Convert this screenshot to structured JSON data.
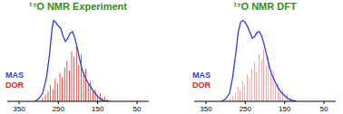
{
  "chart_data": [
    {
      "type": "line",
      "title": "¹⁷O NMR Experiment",
      "legend": "lower left",
      "tick_labels": "x",
      "xlim": [
        380,
        20
      ],
      "xticks": [
        350,
        250,
        150,
        50
      ],
      "ylim": [
        0,
        1.05
      ],
      "series": [
        {
          "name": "MAS",
          "type": "line",
          "color": "#2b3fd6",
          "x": [
            310,
            300,
            290,
            280,
            272,
            266,
            262,
            256,
            250,
            244,
            238,
            232,
            226,
            220,
            214,
            208,
            202,
            196,
            190,
            184,
            176,
            168,
            160,
            150,
            140,
            130,
            120
          ],
          "values": [
            0,
            0.03,
            0.1,
            0.3,
            0.6,
            0.9,
            1.0,
            0.97,
            0.93,
            0.9,
            0.8,
            0.74,
            0.78,
            0.84,
            0.86,
            0.78,
            0.66,
            0.52,
            0.4,
            0.32,
            0.24,
            0.18,
            0.12,
            0.06,
            0.02,
            0,
            0
          ]
        },
        {
          "name": "DOR",
          "type": "bar",
          "color": "#e0201b",
          "x": [
            290,
            283,
            276,
            270,
            264,
            258,
            252,
            246,
            240,
            234,
            228,
            222,
            216,
            210,
            204,
            198,
            192,
            186,
            180,
            174,
            168,
            162,
            156,
            150,
            144,
            138,
            132,
            126
          ],
          "values": [
            0.05,
            0.08,
            0.12,
            0.2,
            0.15,
            0.28,
            0.22,
            0.35,
            0.3,
            0.42,
            0.5,
            0.38,
            0.62,
            0.55,
            0.68,
            0.45,
            0.58,
            0.35,
            0.4,
            0.22,
            0.25,
            0.12,
            0.15,
            0.08,
            0.1,
            0.05,
            0.06,
            0.03
          ]
        }
      ]
    },
    {
      "type": "line",
      "title": "¹⁷O NMR DFT",
      "legend": "lower left",
      "tick_labels": "x",
      "xlim": [
        380,
        20
      ],
      "xticks": [
        350,
        250,
        150,
        50
      ],
      "ylim": [
        0,
        1.05
      ],
      "series": [
        {
          "name": "MAS",
          "type": "line",
          "color": "#2b3fd6",
          "x": [
            310,
            300,
            290,
            282,
            274,
            268,
            262,
            256,
            250,
            244,
            238,
            232,
            226,
            220,
            214,
            208,
            202,
            196,
            190,
            184,
            176,
            168,
            160,
            150,
            140,
            130,
            120
          ],
          "values": [
            0,
            0.03,
            0.1,
            0.3,
            0.6,
            0.85,
            0.98,
            1.0,
            0.97,
            0.92,
            0.85,
            0.78,
            0.8,
            0.85,
            0.86,
            0.8,
            0.7,
            0.58,
            0.45,
            0.35,
            0.26,
            0.18,
            0.12,
            0.07,
            0.03,
            0.01,
            0
          ]
        },
        {
          "name": "DOR",
          "type": "bar",
          "color": "#e0201b",
          "x": [
            288,
            281,
            275,
            269,
            263,
            257,
            251,
            245,
            239,
            233,
            227,
            221,
            215,
            209,
            203,
            197,
            191,
            185,
            179,
            173,
            167,
            161,
            155,
            149,
            143,
            137,
            131,
            125
          ],
          "values": [
            0.04,
            0.07,
            0.1,
            0.18,
            0.14,
            0.25,
            0.2,
            0.33,
            0.28,
            0.4,
            0.48,
            0.36,
            0.58,
            0.52,
            0.64,
            0.44,
            0.55,
            0.33,
            0.38,
            0.2,
            0.23,
            0.11,
            0.14,
            0.07,
            0.09,
            0.04,
            0.05,
            0.02
          ]
        }
      ]
    }
  ]
}
